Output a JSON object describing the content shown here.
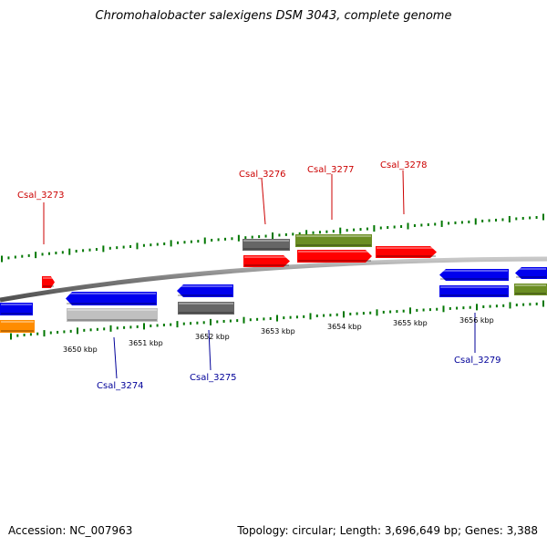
{
  "title": "Chromohalobacter salexigens DSM 3043, complete genome",
  "accession": "Accession: NC_007963",
  "summary": "Topology: circular; Length: 3,696,649 bp; Genes: 3,388",
  "colors": {
    "label_top": "#cc0000",
    "label_bottom": "#000099",
    "tick": "#007700",
    "backbone": "#808080",
    "blue": "#0000ee",
    "red": "#ff0000",
    "olive": "#6b8e23",
    "gray": "#666666",
    "lightgray": "#c0c0c0",
    "orange": "#ff8c00"
  },
  "kbp_labels": [
    "3650 kbp",
    "3651 kbp",
    "3652 kbp",
    "3653 kbp",
    "3654 kbp",
    "3655 kbp",
    "3656 kbp"
  ],
  "top_labels": [
    {
      "text": "Csal_3273"
    },
    {
      "text": "Csal_3276"
    },
    {
      "text": "Csal_3277"
    },
    {
      "text": "Csal_3278"
    }
  ],
  "bottom_labels": [
    {
      "text": "Csal_3274"
    },
    {
      "text": "Csal_3275"
    },
    {
      "text": "Csal_3279"
    }
  ]
}
